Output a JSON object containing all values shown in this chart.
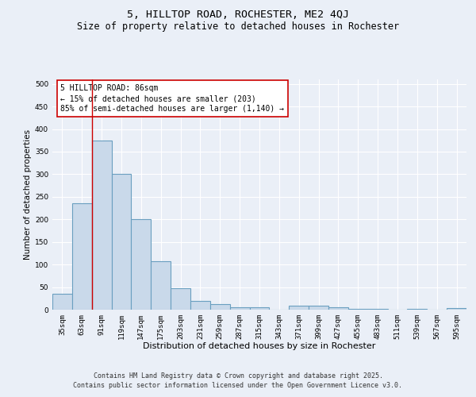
{
  "title": "5, HILLTOP ROAD, ROCHESTER, ME2 4QJ",
  "subtitle": "Size of property relative to detached houses in Rochester",
  "xlabel": "Distribution of detached houses by size in Rochester",
  "ylabel": "Number of detached properties",
  "categories": [
    "35sqm",
    "63sqm",
    "91sqm",
    "119sqm",
    "147sqm",
    "175sqm",
    "203sqm",
    "231sqm",
    "259sqm",
    "287sqm",
    "315sqm",
    "343sqm",
    "371sqm",
    "399sqm",
    "427sqm",
    "455sqm",
    "483sqm",
    "511sqm",
    "539sqm",
    "567sqm",
    "595sqm"
  ],
  "values": [
    35,
    235,
    375,
    300,
    200,
    107,
    47,
    20,
    12,
    6,
    5,
    0,
    9,
    9,
    5,
    1,
    1,
    0,
    1,
    0,
    3
  ],
  "bar_color": "#c9d9ea",
  "bar_edge_color": "#6a9fc0",
  "bar_linewidth": 0.8,
  "vline_color": "#cc0000",
  "vline_x_index": 1.5,
  "annotation_line1": "5 HILLTOP ROAD: 86sqm",
  "annotation_line2": "← 15% of detached houses are smaller (203)",
  "annotation_line3": "85% of semi-detached houses are larger (1,140) →",
  "annotation_box_color": "#ffffff",
  "annotation_border_color": "#cc0000",
  "ylim": [
    0,
    510
  ],
  "yticks": [
    0,
    50,
    100,
    150,
    200,
    250,
    300,
    350,
    400,
    450,
    500
  ],
  "bg_color": "#eaeff7",
  "plot_bg_color": "#eaeff7",
  "grid_color": "#ffffff",
  "footer_line1": "Contains HM Land Registry data © Crown copyright and database right 2025.",
  "footer_line2": "Contains public sector information licensed under the Open Government Licence v3.0.",
  "title_fontsize": 9.5,
  "subtitle_fontsize": 8.5,
  "xlabel_fontsize": 8,
  "ylabel_fontsize": 7.5,
  "tick_fontsize": 6.5,
  "annotation_fontsize": 7,
  "footer_fontsize": 6
}
